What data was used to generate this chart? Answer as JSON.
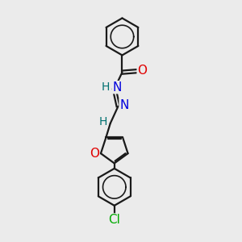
{
  "background_color": "#ebebeb",
  "bond_color": "#1a1a1a",
  "atom_colors": {
    "O": "#e00000",
    "N": "#0000dd",
    "Cl": "#00aa00",
    "H": "#007070",
    "C": "#1a1a1a"
  },
  "bond_lw": 1.6,
  "ring_lw": 1.2,
  "font_size_atom": 10,
  "figsize": [
    3.0,
    3.0
  ],
  "dpi": 100
}
